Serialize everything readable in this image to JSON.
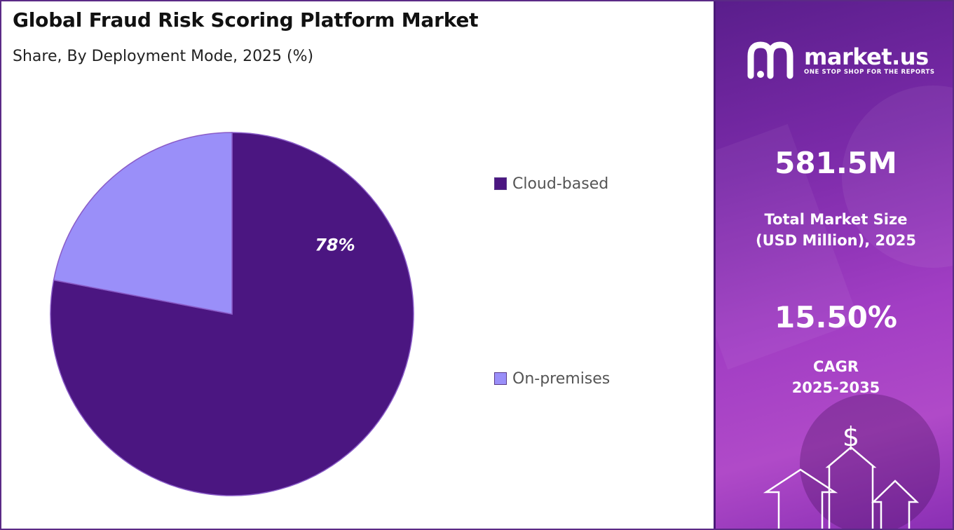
{
  "header": {
    "title": "Global Fraud Risk Scoring Platform Market",
    "subtitle": "Share, By Deployment Mode, 2025 (%)"
  },
  "chart_data": {
    "type": "pie",
    "title": "Global Fraud Risk Scoring Platform Market",
    "subtitle": "Share, By Deployment Mode, 2025 (%)",
    "categories": [
      "Cloud-based",
      "On-premises"
    ],
    "values": [
      78,
      22
    ],
    "colors": [
      "#4b1681",
      "#9a8ff9"
    ],
    "data_labels": [
      "78%",
      ""
    ],
    "legend_position": "right"
  },
  "sidebar": {
    "brand_name": "market.us",
    "brand_tagline": "ONE STOP SHOP FOR THE REPORTS",
    "market_size_value": "581.5M",
    "market_size_label_line1": "Total Market Size",
    "market_size_label_line2": "(USD Million), 2025",
    "cagr_value": "15.50%",
    "cagr_label_line1": "CAGR",
    "cagr_label_line2": "2025-2035",
    "currency_symbol": "$"
  }
}
